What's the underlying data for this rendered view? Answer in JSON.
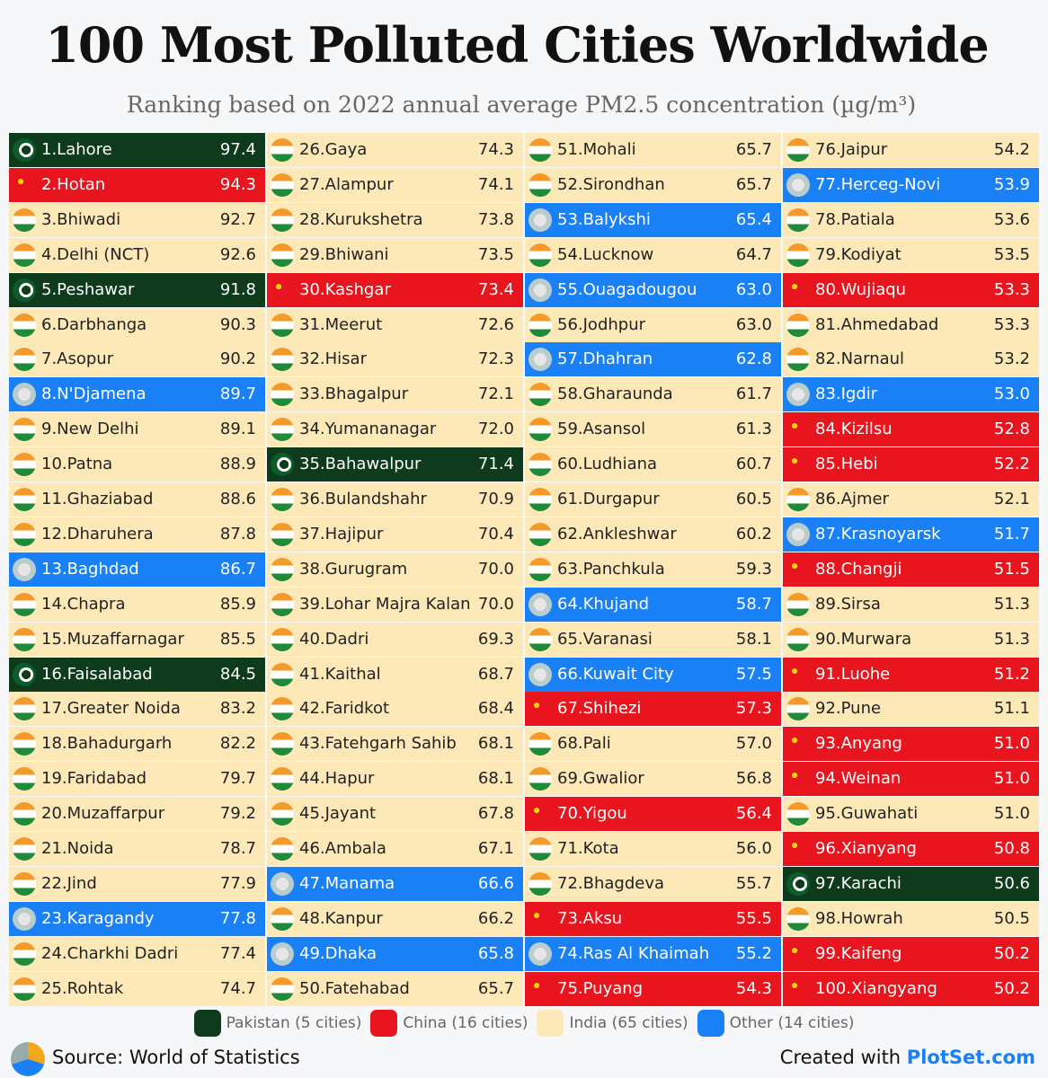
{
  "header": {
    "title": "100 Most Polluted Cities Worldwide",
    "subtitle": "Ranking based on 2022 annual average PM2.5 concentration (µg/m³)"
  },
  "table": {
    "rows": [
      [
        "1.Lahore",
        "97.4",
        "#0d3b1c"
      ],
      [
        "2.Hotan",
        "94.3",
        "#e8141e"
      ],
      [
        "3.Bhiwadi",
        "92.7",
        "#fde8b8"
      ],
      [
        "4.Delhi (NCT)",
        "92.6",
        "#fde8b8"
      ],
      [
        "5.Peshawar",
        "91.8",
        "#0d3b1c"
      ],
      [
        "6.Darbhanga",
        "90.3",
        "#fde8b8"
      ],
      [
        "7.Asopur",
        "90.2",
        "#fde8b8"
      ],
      [
        "8.N'Djamena",
        "89.7",
        "#1a80f5"
      ],
      [
        "9.New Delhi",
        "89.1",
        "#fde8b8"
      ],
      [
        "10.Patna",
        "88.9",
        "#fde8b8"
      ],
      [
        "11.Ghaziabad",
        "88.6",
        "#fde8b8"
      ],
      [
        "12.Dharuhera",
        "87.8",
        "#fde8b8"
      ],
      [
        "13.Baghdad",
        "86.7",
        "#1a80f5"
      ],
      [
        "14.Chapra",
        "85.9",
        "#fde8b8"
      ],
      [
        "15.Muzaffarnagar",
        "85.5",
        "#fde8b8"
      ],
      [
        "16.Faisalabad",
        "84.5",
        "#0d3b1c"
      ],
      [
        "17.Greater Noida",
        "83.2",
        "#fde8b8"
      ],
      [
        "18.Bahadurgarh",
        "82.2",
        "#fde8b8"
      ],
      [
        "19.Faridabad",
        "79.7",
        "#fde8b8"
      ],
      [
        "20.Muzaffarpur",
        "79.2",
        "#fde8b8"
      ],
      [
        "21.Noida",
        "78.7",
        "#fde8b8"
      ],
      [
        "22.Jind",
        "77.9",
        "#fde8b8"
      ],
      [
        "23.Karagandy",
        "77.8",
        "#1a80f5"
      ],
      [
        "24.Charkhi Dadri",
        "77.4",
        "#fde8b8"
      ],
      [
        "25.Rohtak",
        "74.7",
        "#fde8b8"
      ],
      [
        "26.Gaya",
        "74.3",
        "#fde8b8"
      ],
      [
        "27.Alampur",
        "74.1",
        "#fde8b8"
      ],
      [
        "28.Kurukshetra",
        "73.8",
        "#fde8b8"
      ],
      [
        "29.Bhiwani",
        "73.5",
        "#fde8b8"
      ],
      [
        "30.Kashgar",
        "73.4",
        "#e8141e"
      ],
      [
        "31.Meerut",
        "72.6",
        "#fde8b8"
      ],
      [
        "32.Hisar",
        "72.3",
        "#fde8b8"
      ],
      [
        "33.Bhagalpur",
        "72.1",
        "#fde8b8"
      ],
      [
        "34.Yumananagar",
        "72.0",
        "#fde8b8"
      ],
      [
        "35.Bahawalpur",
        "71.4",
        "#0d3b1c"
      ],
      [
        "36.Bulandshahr",
        "70.9",
        "#fde8b8"
      ],
      [
        "37.Hajipur",
        "70.4",
        "#fde8b8"
      ],
      [
        "38.Gurugram",
        "70.0",
        "#fde8b8"
      ],
      [
        "39.Lohar Majra Kalan",
        "70.0",
        "#fde8b8"
      ],
      [
        "40.Dadri",
        "69.3",
        "#fde8b8"
      ],
      [
        "41.Kaithal",
        "68.7",
        "#fde8b8"
      ],
      [
        "42.Faridkot",
        "68.4",
        "#fde8b8"
      ],
      [
        "43.Fatehgarh Sahib",
        "68.1",
        "#fde8b8"
      ],
      [
        "44.Hapur",
        "68.1",
        "#fde8b8"
      ],
      [
        "45.Jayant",
        "67.8",
        "#fde8b8"
      ],
      [
        "46.Ambala",
        "67.1",
        "#fde8b8"
      ],
      [
        "47.Manama",
        "66.6",
        "#1a80f5"
      ],
      [
        "48.Kanpur",
        "66.2",
        "#fde8b8"
      ],
      [
        "49.Dhaka",
        "65.8",
        "#1a80f5"
      ],
      [
        "50.Fatehabad",
        "65.7",
        "#fde8b8"
      ],
      [
        "51.Mohali",
        "65.7",
        "#fde8b8"
      ],
      [
        "52.Sirondhan",
        "65.7",
        "#fde8b8"
      ],
      [
        "53.Balykshi",
        "65.4",
        "#1a80f5"
      ],
      [
        "54.Lucknow",
        "64.7",
        "#fde8b8"
      ],
      [
        "55.Ouagadougou",
        "63.0",
        "#1a80f5"
      ],
      [
        "56.Jodhpur",
        "63.0",
        "#fde8b8"
      ],
      [
        "57.Dhahran",
        "62.8",
        "#1a80f5"
      ],
      [
        "58.Gharaunda",
        "61.7",
        "#fde8b8"
      ],
      [
        "59.Asansol",
        "61.3",
        "#fde8b8"
      ],
      [
        "60.Ludhiana",
        "60.7",
        "#fde8b8"
      ],
      [
        "61.Durgapur",
        "60.5",
        "#fde8b8"
      ],
      [
        "62.Ankleshwar",
        "60.2",
        "#fde8b8"
      ],
      [
        "63.Panchkula",
        "59.3",
        "#fde8b8"
      ],
      [
        "64.Khujand",
        "58.7",
        "#1a80f5"
      ],
      [
        "65.Varanasi",
        "58.1",
        "#fde8b8"
      ],
      [
        "66.Kuwait City",
        "57.5",
        "#1a80f5"
      ],
      [
        "67.Shihezi",
        "57.3",
        "#e8141e"
      ],
      [
        "68.Pali",
        "57.0",
        "#fde8b8"
      ],
      [
        "69.Gwalior",
        "56.8",
        "#fde8b8"
      ],
      [
        "70.Yigou",
        "56.4",
        "#e8141e"
      ],
      [
        "71.Kota",
        "56.0",
        "#fde8b8"
      ],
      [
        "72.Bhagdeva",
        "55.7",
        "#fde8b8"
      ],
      [
        "73.Aksu",
        "55.5",
        "#e8141e"
      ],
      [
        "74.Ras Al Khaimah",
        "55.2",
        "#1a80f5"
      ],
      [
        "75.Puyang",
        "54.3",
        "#e8141e"
      ],
      [
        "76.Jaipur",
        "54.2",
        "#fde8b8"
      ],
      [
        "77.Herceg-Novi",
        "53.9",
        "#1a80f5"
      ],
      [
        "78.Patiala",
        "53.6",
        "#fde8b8"
      ],
      [
        "79.Kodiyat",
        "53.5",
        "#fde8b8"
      ],
      [
        "80.Wujiaqu",
        "53.3",
        "#e8141e"
      ],
      [
        "81.Ahmedabad",
        "53.3",
        "#fde8b8"
      ],
      [
        "82.Narnaul",
        "53.2",
        "#fde8b8"
      ],
      [
        "83.Igdir",
        "53.0",
        "#1a80f5"
      ],
      [
        "84.Kizilsu",
        "52.8",
        "#e8141e"
      ],
      [
        "85.Hebi",
        "52.2",
        "#e8141e"
      ],
      [
        "86.Ajmer",
        "52.1",
        "#fde8b8"
      ],
      [
        "87.Krasnoyarsk",
        "51.7",
        "#1a80f5"
      ],
      [
        "88.Changji",
        "51.5",
        "#e8141e"
      ],
      [
        "89.Sirsa",
        "51.3",
        "#fde8b8"
      ],
      [
        "90.Murwara",
        "51.3",
        "#fde8b8"
      ],
      [
        "91.Luohe",
        "51.2",
        "#e8141e"
      ],
      [
        "92.Pune",
        "51.1",
        "#fde8b8"
      ],
      [
        "93.Anyang",
        "51.0",
        "#e8141e"
      ],
      [
        "94.Weinan",
        "51.0",
        "#e8141e"
      ],
      [
        "95.Guwahati",
        "51.0",
        "#fde8b8"
      ],
      [
        "96.Xianyang",
        "50.8",
        "#e8141e"
      ],
      [
        "97.Karachi",
        "50.6",
        "#0d3b1c"
      ],
      [
        "98.Howrah",
        "50.5",
        "#fde8b8"
      ],
      [
        "99.Kaifeng",
        "50.2",
        "#e8141e"
      ],
      [
        "100.Xiangyang",
        "50.2",
        "#e8141e"
      ]
    ]
  },
  "legend": [
    {
      "label": "Pakistan (5 cities)",
      "color": "#0d3b1c"
    },
    {
      "label": "China (16 cities)",
      "color": "#e8141e"
    },
    {
      "label": "India (65 cities)",
      "color": "#fde8b8"
    },
    {
      "label": "Other (14 cities)",
      "color": "#1a80f5"
    }
  ],
  "footer": {
    "source": "Source: World of Statistics",
    "credit": "Created with ",
    "brand": "PlotSet.com"
  }
}
